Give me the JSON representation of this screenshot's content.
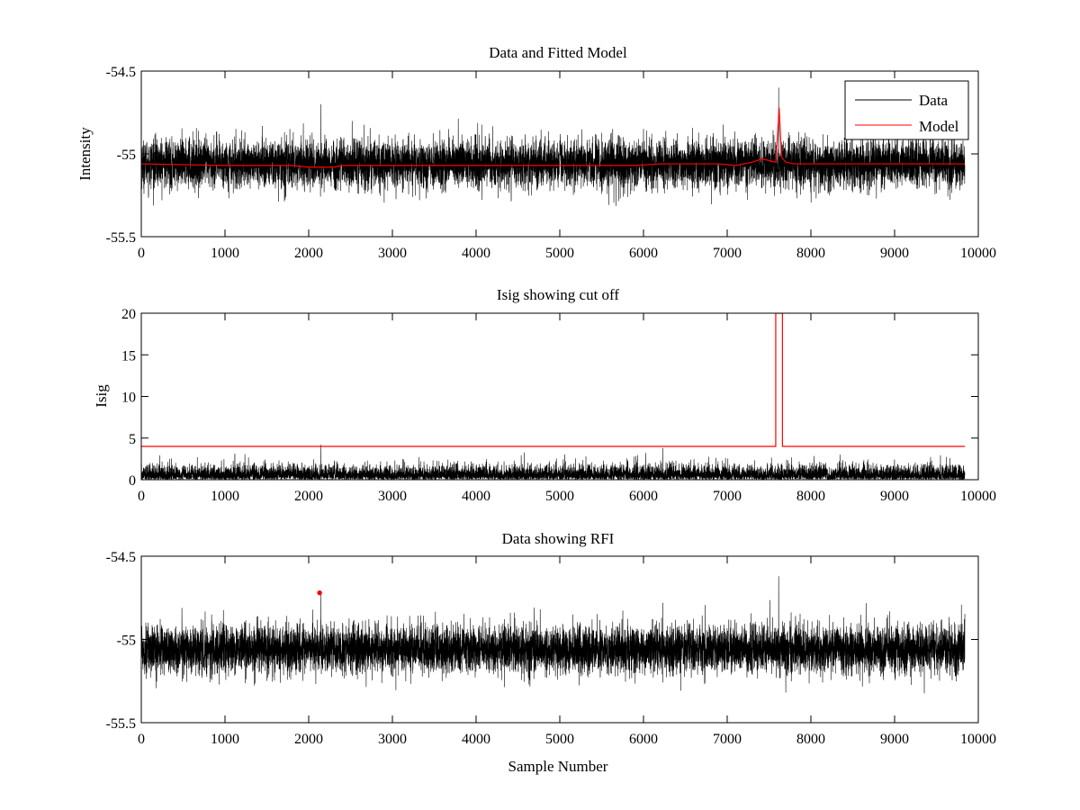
{
  "chart_data": [
    {
      "type": "line",
      "title": "Data and Fitted Model",
      "xlabel": "",
      "ylabel": "Intensity",
      "xlim": [
        0,
        10000
      ],
      "ylim": [
        -55.5,
        -54.5
      ],
      "xticks": [
        "0",
        "1000",
        "2000",
        "3000",
        "4000",
        "5000",
        "6000",
        "7000",
        "8000",
        "9000",
        "10000"
      ],
      "yticks": [
        "-54.5",
        "-55",
        "-55.5"
      ],
      "legend": {
        "position": "top-right",
        "entries": [
          {
            "label": "Data",
            "color": "#000000"
          },
          {
            "label": "Model",
            "color": "#ff0000"
          }
        ]
      },
      "series": [
        {
          "name": "Data",
          "kind": "noise",
          "color": "#000000",
          "n_samples": 9840,
          "baseline": -55.06,
          "noise_amplitude": 0.12,
          "spikes": [
            {
              "x": 7615,
              "y": -54.6
            },
            {
              "x": 2145,
              "y": -54.7
            },
            {
              "x": 7620,
              "y": -55.1
            }
          ]
        },
        {
          "name": "Model",
          "kind": "line",
          "color": "#ff0000",
          "x": [
            0,
            1000,
            1800,
            2000,
            2300,
            2400,
            3000,
            5000,
            5900,
            6200,
            6900,
            7100,
            7300,
            7420,
            7500,
            7580,
            7600,
            7620,
            7650,
            7700,
            7800,
            9840
          ],
          "y": [
            -55.06,
            -55.07,
            -55.07,
            -55.08,
            -55.08,
            -55.07,
            -55.07,
            -55.07,
            -55.07,
            -55.06,
            -55.06,
            -55.07,
            -55.05,
            -55.03,
            -55.04,
            -55.05,
            -54.9,
            -54.72,
            -55.02,
            -55.05,
            -55.06,
            -55.06
          ]
        }
      ]
    },
    {
      "type": "line",
      "title": "Isig showing cut off",
      "xlabel": "",
      "ylabel": "Isig",
      "xlim": [
        0,
        10000
      ],
      "ylim": [
        0,
        20
      ],
      "xticks": [
        "0",
        "1000",
        "2000",
        "3000",
        "4000",
        "5000",
        "6000",
        "7000",
        "8000",
        "9000",
        "10000"
      ],
      "yticks": [
        "20",
        "15",
        "10",
        "5",
        "0"
      ],
      "series": [
        {
          "name": "Isig",
          "kind": "noise-positive",
          "color": "#000000",
          "n_samples": 9840,
          "noise_amplitude": 1.5,
          "spikes": [
            {
              "x": 2145,
              "y": 4.2
            },
            {
              "x": 6230,
              "y": 3.8
            }
          ]
        },
        {
          "name": "Cutoff",
          "kind": "line",
          "color": "#ff0000",
          "x": [
            0,
            7580,
            7580,
            7660,
            7660,
            9840
          ],
          "y": [
            4,
            4,
            20,
            20,
            4,
            4
          ]
        }
      ]
    },
    {
      "type": "line",
      "title": "Data showing RFI",
      "xlabel": "Sample Number",
      "ylabel": "",
      "xlim": [
        0,
        10000
      ],
      "ylim": [
        -55.5,
        -54.5
      ],
      "xticks": [
        "0",
        "1000",
        "2000",
        "3000",
        "4000",
        "5000",
        "6000",
        "7000",
        "8000",
        "9000",
        "10000"
      ],
      "yticks": [
        "-54.5",
        "-55",
        "-55.5"
      ],
      "series": [
        {
          "name": "Data",
          "kind": "noise",
          "color": "#000000",
          "n_samples": 9840,
          "baseline": -55.06,
          "noise_amplitude": 0.12,
          "spikes": [
            {
              "x": 7615,
              "y": -54.62
            },
            {
              "x": 6230,
              "y": -54.78
            },
            {
              "x": 2145,
              "y": -54.72
            }
          ]
        },
        {
          "name": "RFI",
          "kind": "scatter",
          "color": "#ff0000",
          "x": [
            2130
          ],
          "y": [
            -54.72
          ]
        }
      ]
    }
  ]
}
